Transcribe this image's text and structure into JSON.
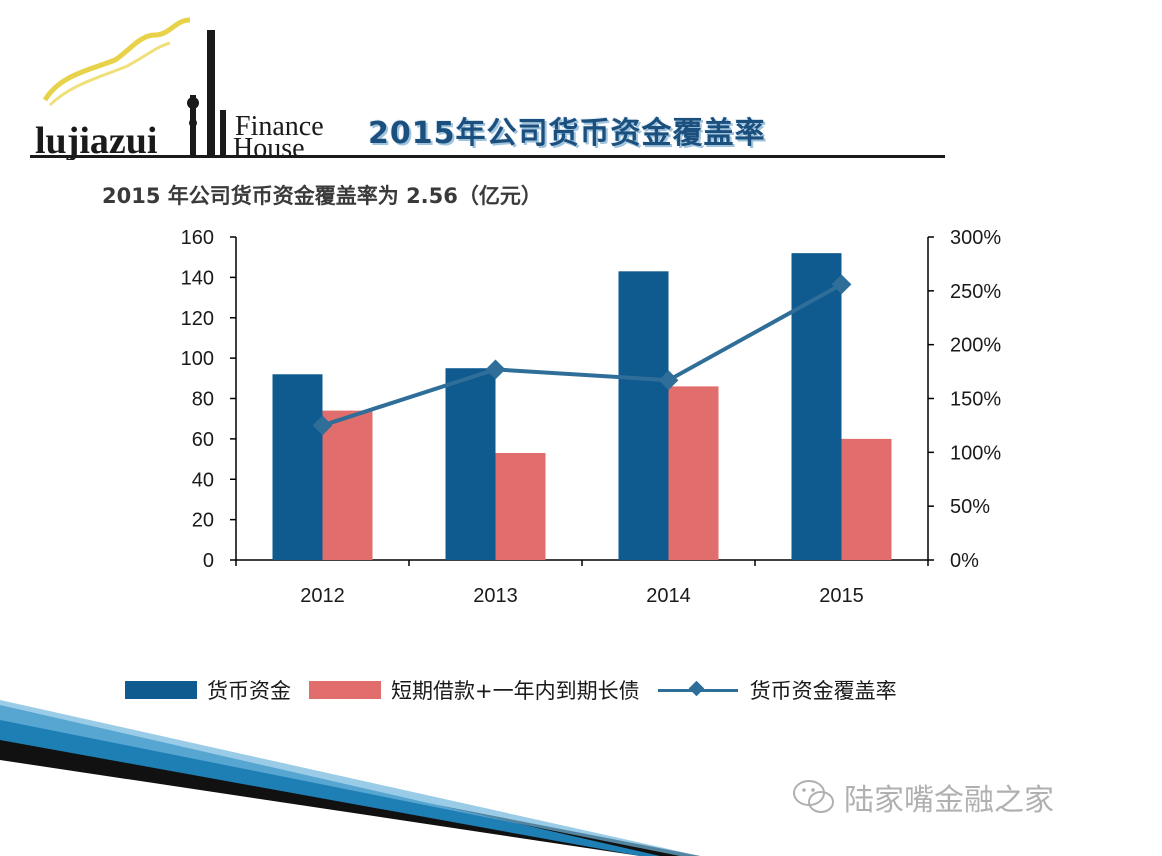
{
  "header": {
    "logo_text": "LujiazuiFinance House",
    "logo_finance": "Finance",
    "logo_house": "House",
    "title": "2015年公司货币资金覆盖率"
  },
  "subtitle": "2015 年公司货币资金覆盖率为 2.56（亿元）",
  "watermark": "陆家嘴金融之家",
  "colors": {
    "bar_cash": "#0f5a8e",
    "bar_debt": "#e16d6c",
    "line_ratio": "#2f6e99",
    "axis": "#000000",
    "title": "#1b4f7e"
  },
  "chart_data": {
    "type": "bar",
    "categories": [
      "2012",
      "2013",
      "2014",
      "2015"
    ],
    "series": [
      {
        "name": "货币资金",
        "values": [
          92,
          95,
          143,
          152
        ],
        "axis": "left",
        "kind": "bar"
      },
      {
        "name": "短期借款+一年内到期长债",
        "values": [
          74,
          53,
          86,
          60
        ],
        "axis": "left",
        "kind": "bar"
      },
      {
        "name": "货币资金覆盖率",
        "values": [
          125,
          177,
          167,
          256
        ],
        "axis": "right",
        "kind": "line",
        "unit": "%"
      }
    ],
    "ylim": [
      0,
      160
    ],
    "y2lim": [
      0,
      300
    ],
    "y_ticks": [
      "0",
      "20",
      "40",
      "60",
      "80",
      "100",
      "120",
      "140",
      "160"
    ],
    "y2_ticks": [
      "0%",
      "50%",
      "100%",
      "150%",
      "200%",
      "250%",
      "300%"
    ],
    "legend_position": "bottom",
    "grid": false
  }
}
